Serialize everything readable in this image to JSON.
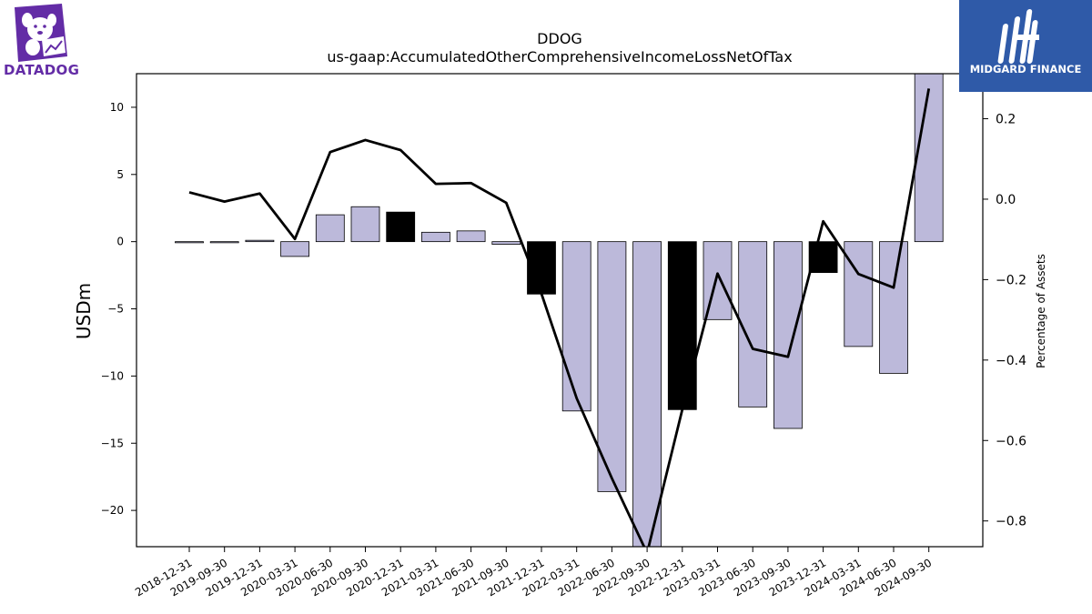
{
  "logos": {
    "left_text": "DATADOG",
    "right_text": "MIDGARD FINANCE",
    "left_color": "#632ca6",
    "right_bg": "#2f5aa8"
  },
  "chart_data": {
    "type": "bar",
    "title": "DDOG",
    "subtitle": "us-gaap:AccumulatedOtherComprehensiveIncomeLossNetOfTax",
    "ylabel": "USDm",
    "y2label": "Percentage of Assets",
    "ylim": [
      -22.7,
      12.5
    ],
    "y2lim": [
      -0.864,
      0.312
    ],
    "yticks": [
      10,
      5,
      0,
      -5,
      -10,
      -15,
      -20
    ],
    "y2ticks": [
      0.2,
      0.0,
      -0.2,
      -0.4,
      -0.6,
      -0.8
    ],
    "y2tick_labels": [
      "0.2",
      "0.0",
      "−0.2",
      "−0.4",
      "−0.6",
      "−0.8"
    ],
    "categories": [
      "2018-12-31",
      "2019-09-30",
      "2019-12-31",
      "2020-03-31",
      "2020-06-30",
      "2020-09-30",
      "2020-12-31",
      "2021-03-31",
      "2021-06-30",
      "2021-09-30",
      "2021-12-31",
      "2022-03-31",
      "2022-06-30",
      "2022-09-30",
      "2022-12-31",
      "2023-03-31",
      "2023-06-30",
      "2023-09-30",
      "2023-12-31",
      "2024-03-31",
      "2024-06-30",
      "2024-09-30"
    ],
    "series": [
      {
        "type": "bar",
        "values": [
          0.0,
          -0.05,
          0.1,
          -1.1,
          2.0,
          2.6,
          2.2,
          0.7,
          0.8,
          -0.2,
          -3.9,
          -12.6,
          -18.6,
          -22.7,
          -12.5,
          -5.8,
          -12.3,
          -13.9,
          -2.3,
          -7.8,
          -9.8,
          12.5
        ],
        "colors": [
          "#bcb9da",
          "#bcb9da",
          "#bcb9da",
          "#bcb9da",
          "#bcb9da",
          "#bcb9da",
          "#000000",
          "#bcb9da",
          "#bcb9da",
          "#bcb9da",
          "#000000",
          "#bcb9da",
          "#bcb9da",
          "#bcb9da",
          "#000000",
          "#bcb9da",
          "#bcb9da",
          "#bcb9da",
          "#000000",
          "#bcb9da",
          "#bcb9da",
          "#bcb9da"
        ]
      },
      {
        "type": "line",
        "axis": "right",
        "color": "#000000",
        "values": [
          0.017,
          -0.006,
          0.014,
          -0.099,
          0.117,
          0.147,
          0.122,
          0.038,
          0.04,
          -0.009,
          -0.235,
          -0.495,
          -0.694,
          -0.88,
          -0.523,
          -0.185,
          -0.372,
          -0.392,
          -0.055,
          -0.186,
          -0.22,
          0.275
        ]
      }
    ],
    "bar_fill": "#bcb9da",
    "bar_highlight": "#000000",
    "grid": false
  }
}
